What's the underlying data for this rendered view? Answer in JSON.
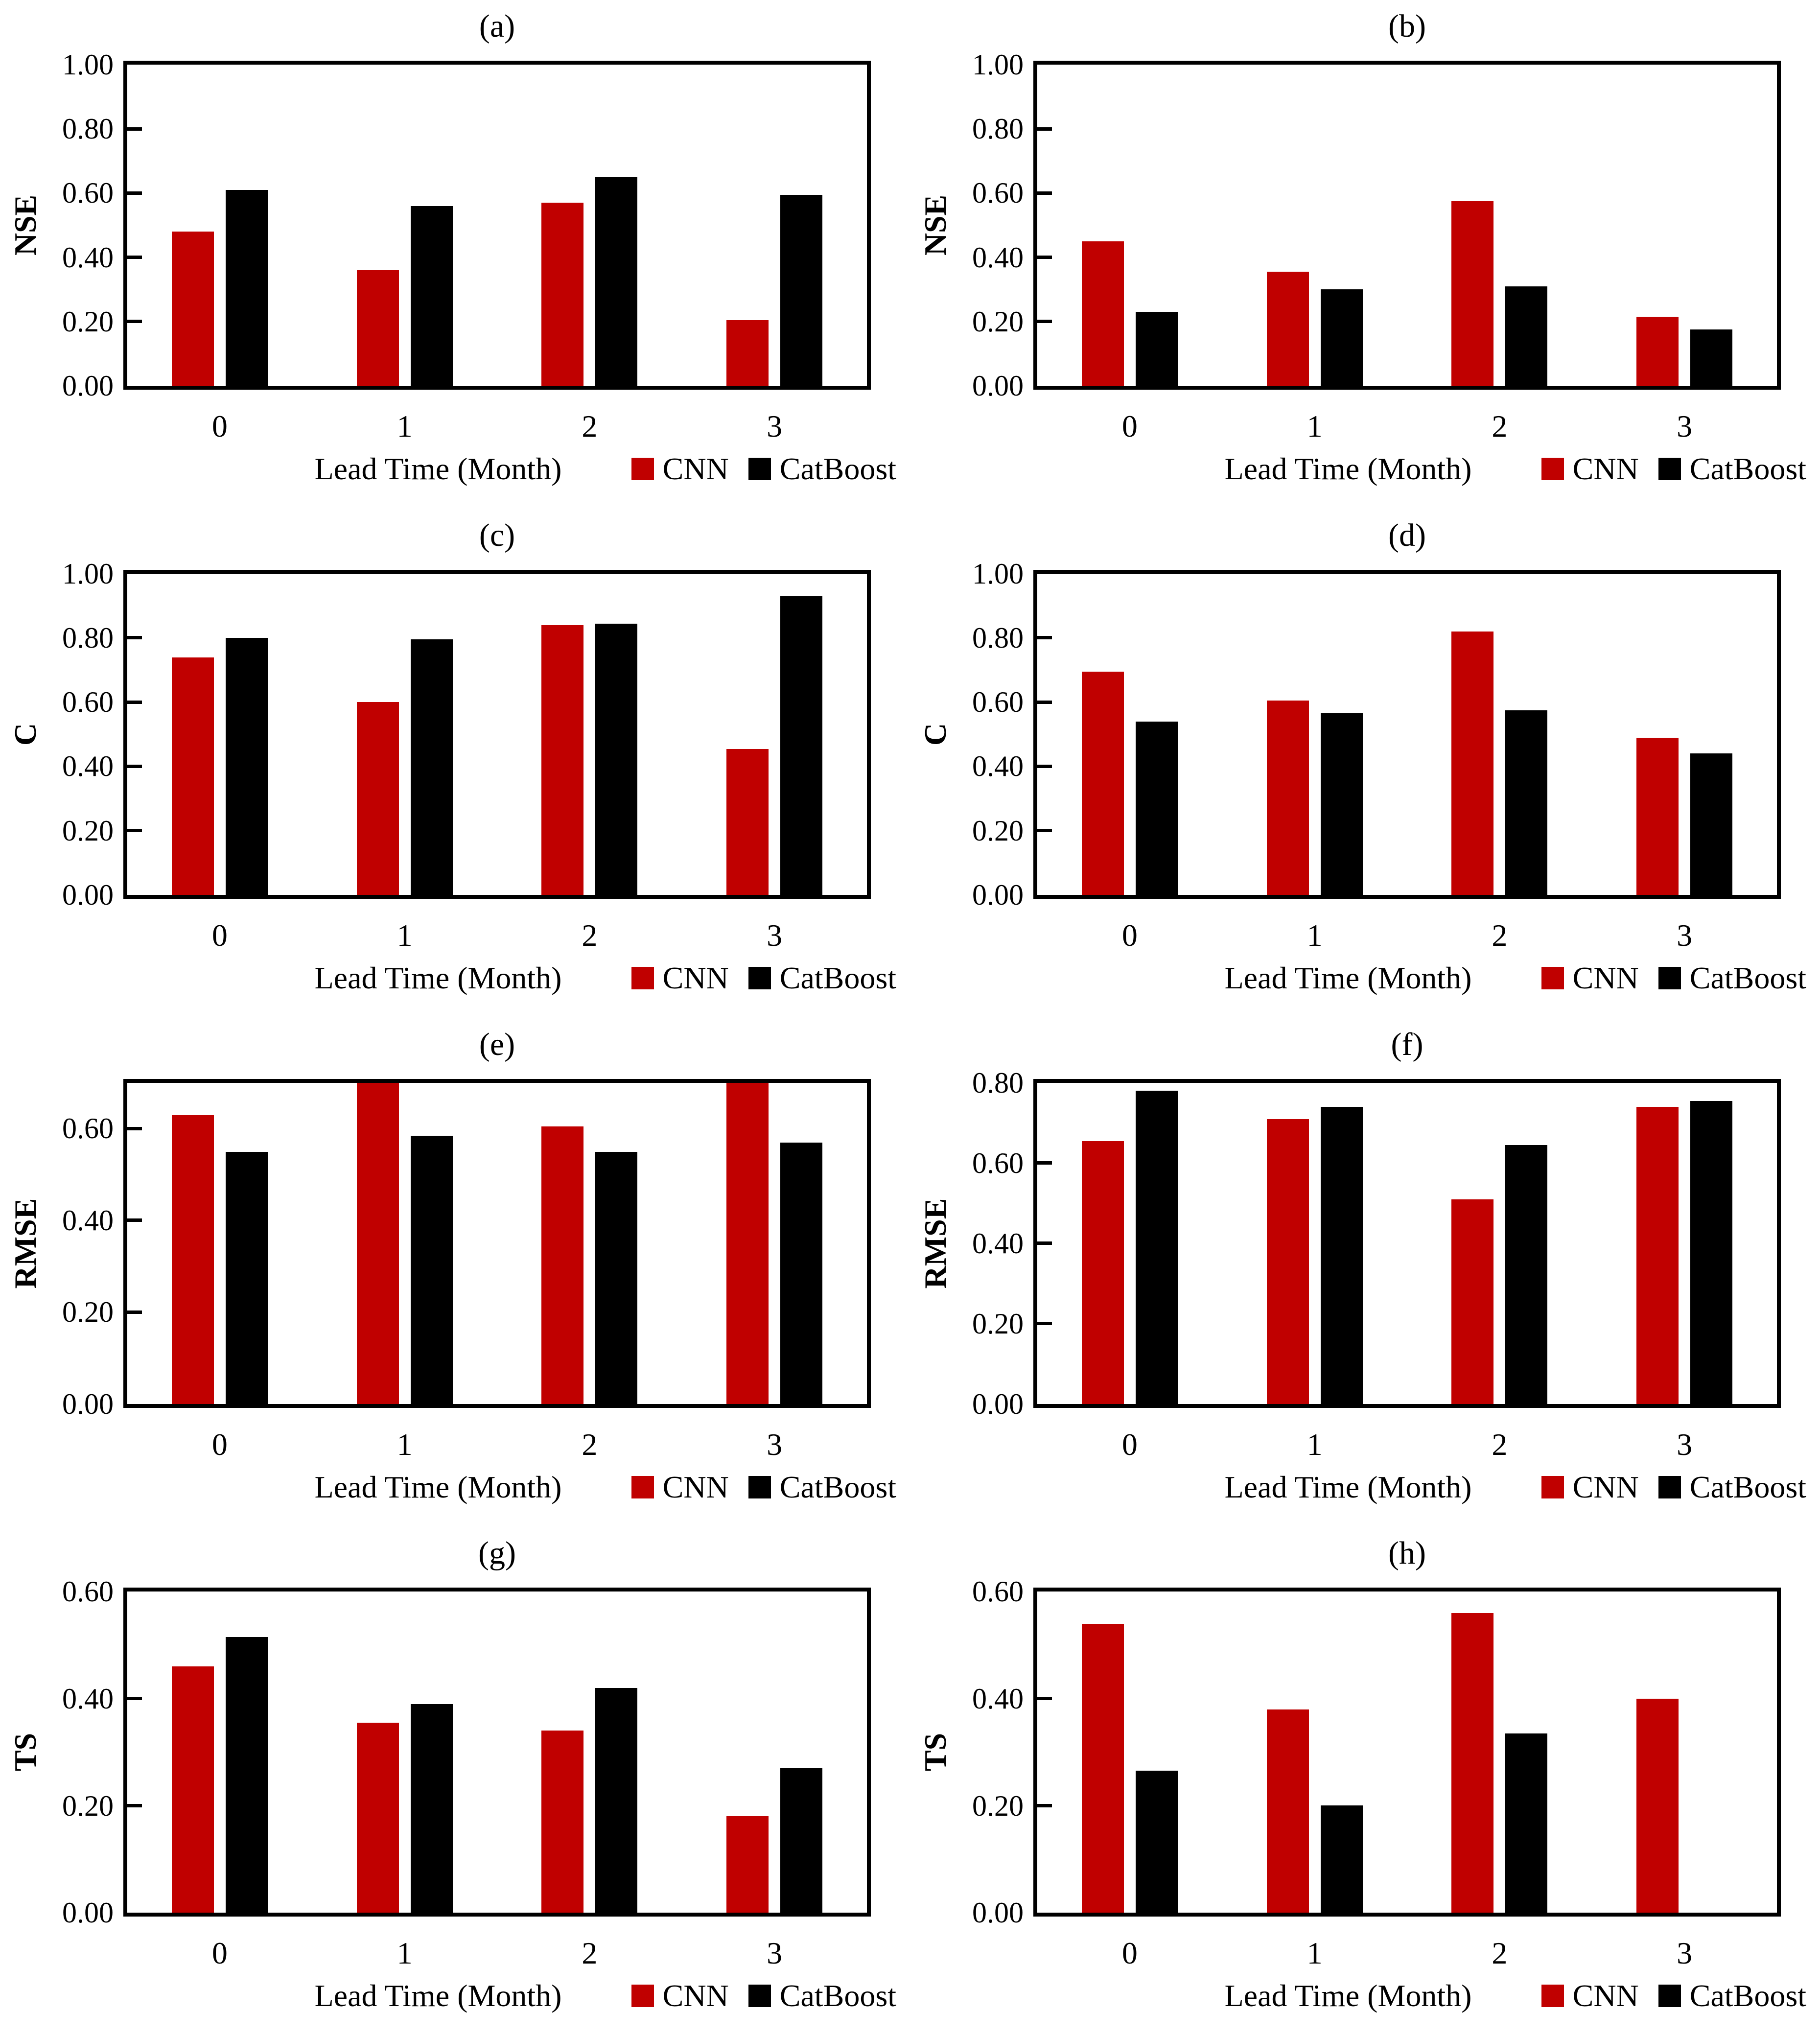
{
  "figure": {
    "background": "#ffffff"
  },
  "legend": {
    "items": [
      {
        "label": "CNN",
        "color": "#c00000"
      },
      {
        "label": "CatBoost",
        "color": "#000000"
      }
    ]
  },
  "chart_data": [
    {
      "panel_label": "(a)",
      "type": "bar",
      "ylabel": "NSE",
      "xlabel": "Lead Time (Month)",
      "ylim": [
        0,
        1.0
      ],
      "yticks": [
        0,
        0.2,
        0.4,
        0.6,
        0.8,
        1.0
      ],
      "categories": [
        "0",
        "1",
        "2",
        "3"
      ],
      "legend_position": "bottom-right",
      "grid": false,
      "series": [
        {
          "name": "CNN",
          "color": "#c00000",
          "values": [
            0.48,
            0.36,
            0.57,
            0.205
          ]
        },
        {
          "name": "CatBoost",
          "color": "#000000",
          "values": [
            0.61,
            0.56,
            0.65,
            0.595
          ]
        }
      ]
    },
    {
      "panel_label": "(b)",
      "type": "bar",
      "ylabel": "NSE",
      "xlabel": "Lead Time (Month)",
      "ylim": [
        0,
        1.0
      ],
      "yticks": [
        0,
        0.2,
        0.4,
        0.6,
        0.8,
        1.0
      ],
      "categories": [
        "0",
        "1",
        "2",
        "3"
      ],
      "legend_position": "bottom-right",
      "grid": false,
      "series": [
        {
          "name": "CNN",
          "color": "#c00000",
          "values": [
            0.45,
            0.355,
            0.575,
            0.215
          ]
        },
        {
          "name": "CatBoost",
          "color": "#000000",
          "values": [
            0.23,
            0.3,
            0.31,
            0.175
          ]
        }
      ]
    },
    {
      "panel_label": "(c)",
      "type": "bar",
      "ylabel": "C",
      "xlabel": "Lead Time (Month)",
      "ylim": [
        0,
        1.0
      ],
      "yticks": [
        0,
        0.2,
        0.4,
        0.6,
        0.8,
        1.0
      ],
      "categories": [
        "0",
        "1",
        "2",
        "3"
      ],
      "legend_position": "bottom-right",
      "grid": false,
      "series": [
        {
          "name": "CNN",
          "color": "#c00000",
          "values": [
            0.74,
            0.6,
            0.84,
            0.455
          ]
        },
        {
          "name": "CatBoost",
          "color": "#000000",
          "values": [
            0.8,
            0.795,
            0.845,
            0.93
          ]
        }
      ]
    },
    {
      "panel_label": "(d)",
      "type": "bar",
      "ylabel": "C",
      "xlabel": "Lead Time (Month)",
      "ylim": [
        0,
        1.0
      ],
      "yticks": [
        0,
        0.2,
        0.4,
        0.6,
        0.8,
        1.0
      ],
      "categories": [
        "0",
        "1",
        "2",
        "3"
      ],
      "legend_position": "bottom-right",
      "grid": false,
      "series": [
        {
          "name": "CNN",
          "color": "#c00000",
          "values": [
            0.695,
            0.605,
            0.82,
            0.49
          ]
        },
        {
          "name": "CatBoost",
          "color": "#000000",
          "values": [
            0.54,
            0.565,
            0.575,
            0.44
          ]
        }
      ]
    },
    {
      "panel_label": "(e)",
      "type": "bar",
      "ylabel": "RMSE",
      "xlabel": "Lead Time (Month)",
      "ylim": [
        0,
        0.7
      ],
      "yticks": [
        0,
        0.2,
        0.4,
        0.6
      ],
      "categories": [
        "0",
        "1",
        "2",
        "3"
      ],
      "legend_position": "bottom-right",
      "grid": false,
      "note": "CNN bars at lead 1 and 3 are clipped at the axis top (0.70)",
      "series": [
        {
          "name": "CNN",
          "color": "#c00000",
          "values": [
            0.63,
            0.7,
            0.605,
            0.7
          ]
        },
        {
          "name": "CatBoost",
          "color": "#000000",
          "values": [
            0.55,
            0.585,
            0.55,
            0.57
          ]
        }
      ]
    },
    {
      "panel_label": "(f)",
      "type": "bar",
      "ylabel": "RMSE",
      "xlabel": "Lead Time (Month)",
      "ylim": [
        0,
        0.8
      ],
      "yticks": [
        0,
        0.2,
        0.4,
        0.6,
        0.8
      ],
      "categories": [
        "0",
        "1",
        "2",
        "3"
      ],
      "legend_position": "bottom-right",
      "grid": false,
      "series": [
        {
          "name": "CNN",
          "color": "#c00000",
          "values": [
            0.655,
            0.71,
            0.51,
            0.74
          ]
        },
        {
          "name": "CatBoost",
          "color": "#000000",
          "values": [
            0.78,
            0.74,
            0.645,
            0.755
          ]
        }
      ]
    },
    {
      "panel_label": "(g)",
      "type": "bar",
      "ylabel": "TS",
      "xlabel": "Lead Time (Month)",
      "ylim": [
        0,
        0.6
      ],
      "yticks": [
        0,
        0.2,
        0.4,
        0.6
      ],
      "categories": [
        "0",
        "1",
        "2",
        "3"
      ],
      "legend_position": "bottom-right",
      "grid": false,
      "series": [
        {
          "name": "CNN",
          "color": "#c00000",
          "values": [
            0.46,
            0.355,
            0.34,
            0.18
          ]
        },
        {
          "name": "CatBoost",
          "color": "#000000",
          "values": [
            0.515,
            0.39,
            0.42,
            0.27
          ]
        }
      ]
    },
    {
      "panel_label": "(h)",
      "type": "bar",
      "ylabel": "TS",
      "xlabel": "Lead Time (Month)",
      "ylim": [
        0,
        0.6
      ],
      "yticks": [
        0,
        0.2,
        0.4,
        0.6
      ],
      "categories": [
        "0",
        "1",
        "2",
        "3"
      ],
      "legend_position": "bottom-right",
      "grid": false,
      "note": "No CatBoost bar at lead time 3",
      "series": [
        {
          "name": "CNN",
          "color": "#c00000",
          "values": [
            0.54,
            0.38,
            0.56,
            0.4
          ]
        },
        {
          "name": "CatBoost",
          "color": "#000000",
          "values": [
            0.265,
            0.2,
            0.335,
            null
          ]
        }
      ]
    }
  ]
}
